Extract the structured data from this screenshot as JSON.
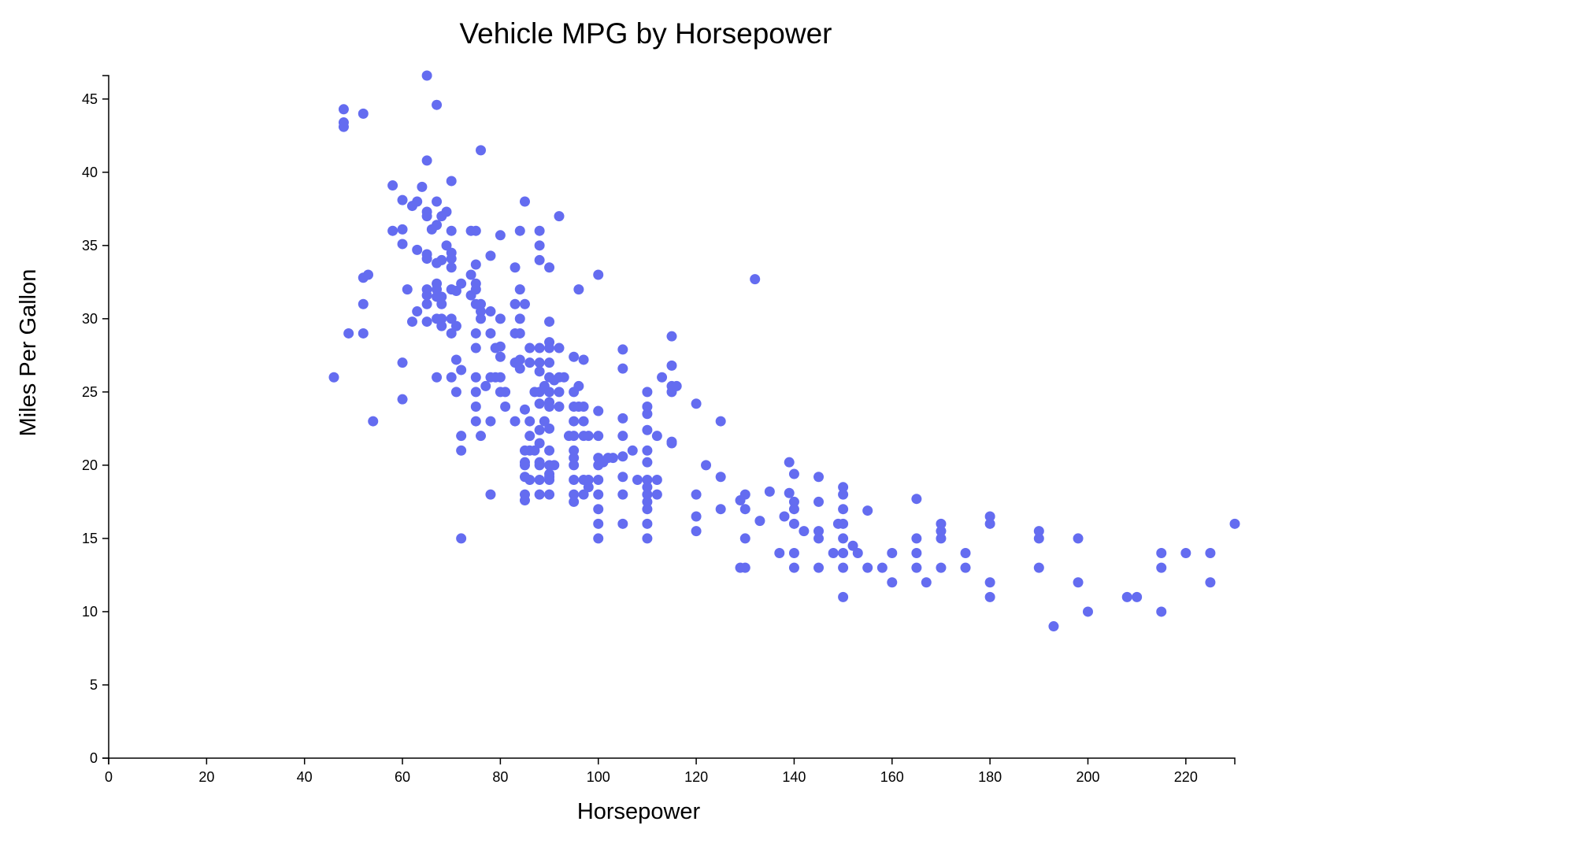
{
  "chart_data": {
    "type": "scatter",
    "title": "Vehicle MPG by Horsepower",
    "xlabel": "Horsepower",
    "ylabel": "Miles Per Gallon",
    "xlim": [
      0,
      230
    ],
    "ylim": [
      0,
      46.6
    ],
    "xticks": [
      0,
      20,
      40,
      60,
      80,
      100,
      120,
      140,
      160,
      180,
      200,
      220
    ],
    "yticks": [
      0,
      5,
      10,
      15,
      20,
      25,
      30,
      35,
      40,
      45
    ],
    "grid": false,
    "point_color": "#646cf0",
    "points": [
      [
        46,
        26
      ],
      [
        48,
        44.3
      ],
      [
        48,
        43.4
      ],
      [
        48,
        43.1
      ],
      [
        49,
        29
      ],
      [
        52,
        44
      ],
      [
        52,
        32.8
      ],
      [
        52,
        31
      ],
      [
        52,
        29
      ],
      [
        53,
        33
      ],
      [
        54,
        23
      ],
      [
        58,
        39.1
      ],
      [
        58,
        36
      ],
      [
        60,
        38.1
      ],
      [
        60,
        36.1
      ],
      [
        60,
        35.1
      ],
      [
        60,
        27
      ],
      [
        60,
        24.5
      ],
      [
        61,
        32
      ],
      [
        62,
        37.7
      ],
      [
        62,
        29.8
      ],
      [
        63,
        38
      ],
      [
        63,
        34.7
      ],
      [
        63,
        30.5
      ],
      [
        64,
        39
      ],
      [
        65,
        46.6
      ],
      [
        65,
        40.8
      ],
      [
        65,
        37.3
      ],
      [
        65,
        37
      ],
      [
        65,
        34.4
      ],
      [
        65,
        34.1
      ],
      [
        65,
        32
      ],
      [
        65,
        31.6
      ],
      [
        65,
        31
      ],
      [
        65,
        29.8
      ],
      [
        66,
        36.1
      ],
      [
        67,
        44.6
      ],
      [
        67,
        38
      ],
      [
        67,
        36.4
      ],
      [
        67,
        33.8
      ],
      [
        67,
        32.4
      ],
      [
        67,
        32
      ],
      [
        67,
        31.5
      ],
      [
        67,
        30
      ],
      [
        67,
        26
      ],
      [
        68,
        37
      ],
      [
        68,
        34
      ],
      [
        68,
        31.5
      ],
      [
        68,
        31
      ],
      [
        68,
        30
      ],
      [
        68,
        29.5
      ],
      [
        69,
        37.3
      ],
      [
        69,
        35
      ],
      [
        70,
        39.4
      ],
      [
        70,
        36
      ],
      [
        70,
        34.5
      ],
      [
        70,
        34.1
      ],
      [
        70,
        33.5
      ],
      [
        70,
        32
      ],
      [
        70,
        30
      ],
      [
        70,
        29
      ],
      [
        70,
        26
      ],
      [
        71,
        31.9
      ],
      [
        71,
        29.5
      ],
      [
        71,
        27.2
      ],
      [
        71,
        25
      ],
      [
        72,
        32.4
      ],
      [
        72,
        26.5
      ],
      [
        72,
        22
      ],
      [
        72,
        21
      ],
      [
        72,
        15
      ],
      [
        74,
        36
      ],
      [
        74,
        33
      ],
      [
        74,
        31.6
      ],
      [
        75,
        36
      ],
      [
        75,
        33.7
      ],
      [
        75,
        32.4
      ],
      [
        75,
        32
      ],
      [
        75,
        31
      ],
      [
        75,
        29
      ],
      [
        75,
        28
      ],
      [
        75,
        26
      ],
      [
        75,
        25
      ],
      [
        75,
        24
      ],
      [
        75,
        23
      ],
      [
        76,
        41.5
      ],
      [
        76,
        31
      ],
      [
        76,
        30.5
      ],
      [
        76,
        30
      ],
      [
        76,
        22
      ],
      [
        77,
        25.4
      ],
      [
        78,
        34.3
      ],
      [
        78,
        30.5
      ],
      [
        78,
        29
      ],
      [
        78,
        26
      ],
      [
        78,
        23
      ],
      [
        78,
        18
      ],
      [
        79,
        28
      ],
      [
        79,
        26
      ],
      [
        80,
        35.7
      ],
      [
        80,
        30
      ],
      [
        80,
        28.1
      ],
      [
        80,
        27.4
      ],
      [
        80,
        26
      ],
      [
        80,
        25
      ],
      [
        81,
        25
      ],
      [
        81,
        24
      ],
      [
        83,
        33.5
      ],
      [
        83,
        31
      ],
      [
        83,
        29
      ],
      [
        83,
        27
      ],
      [
        83,
        23
      ],
      [
        84,
        36
      ],
      [
        84,
        32
      ],
      [
        84,
        30
      ],
      [
        84,
        29
      ],
      [
        84,
        27.2
      ],
      [
        84,
        26.6
      ],
      [
        85,
        38
      ],
      [
        85,
        31
      ],
      [
        85,
        23.8
      ],
      [
        85,
        21
      ],
      [
        85,
        20.2
      ],
      [
        85,
        20
      ],
      [
        85,
        19.2
      ],
      [
        85,
        18
      ],
      [
        85,
        17.6
      ],
      [
        86,
        28
      ],
      [
        86,
        27
      ],
      [
        86,
        23
      ],
      [
        86,
        22
      ],
      [
        86,
        21
      ],
      [
        86,
        19
      ],
      [
        87,
        25
      ],
      [
        87,
        21
      ],
      [
        88,
        36
      ],
      [
        88,
        35
      ],
      [
        88,
        34
      ],
      [
        88,
        28
      ],
      [
        88,
        27
      ],
      [
        88,
        26.4
      ],
      [
        88,
        25
      ],
      [
        88,
        24.2
      ],
      [
        88,
        22.4
      ],
      [
        88,
        21.5
      ],
      [
        88,
        20.2
      ],
      [
        88,
        20
      ],
      [
        88,
        19
      ],
      [
        88,
        18
      ],
      [
        89,
        25.4
      ],
      [
        89,
        23
      ],
      [
        90,
        33.5
      ],
      [
        90,
        29.8
      ],
      [
        90,
        28.4
      ],
      [
        90,
        28
      ],
      [
        90,
        27
      ],
      [
        90,
        26
      ],
      [
        90,
        25
      ],
      [
        90,
        24.3
      ],
      [
        90,
        24
      ],
      [
        90,
        22.5
      ],
      [
        90,
        21
      ],
      [
        90,
        20
      ],
      [
        90,
        19.4
      ],
      [
        90,
        19.2
      ],
      [
        90,
        19
      ],
      [
        90,
        18
      ],
      [
        91,
        25.8
      ],
      [
        91,
        20
      ],
      [
        92,
        37
      ],
      [
        92,
        28
      ],
      [
        92,
        26
      ],
      [
        92,
        25
      ],
      [
        92,
        24
      ],
      [
        93,
        26
      ],
      [
        94,
        22
      ],
      [
        95,
        27.4
      ],
      [
        95,
        25
      ],
      [
        95,
        24
      ],
      [
        95,
        23
      ],
      [
        95,
        22
      ],
      [
        95,
        21
      ],
      [
        95,
        20.5
      ],
      [
        95,
        20
      ],
      [
        95,
        19
      ],
      [
        95,
        18
      ],
      [
        95,
        17.5
      ],
      [
        96,
        32
      ],
      [
        96,
        25.4
      ],
      [
        96,
        24
      ],
      [
        97,
        27.2
      ],
      [
        97,
        24
      ],
      [
        97,
        23
      ],
      [
        97,
        22
      ],
      [
        97,
        19
      ],
      [
        97,
        18
      ],
      [
        98,
        22
      ],
      [
        98,
        18.5
      ],
      [
        98,
        19
      ],
      [
        100,
        33
      ],
      [
        100,
        23.7
      ],
      [
        100,
        22
      ],
      [
        100,
        20.5
      ],
      [
        100,
        20
      ],
      [
        100,
        19
      ],
      [
        100,
        18
      ],
      [
        100,
        17
      ],
      [
        100,
        16
      ],
      [
        100,
        15
      ],
      [
        101,
        20.2
      ],
      [
        102,
        20.5
      ],
      [
        103,
        20.5
      ],
      [
        105,
        27.9
      ],
      [
        105,
        26.6
      ],
      [
        105,
        23.2
      ],
      [
        105,
        22
      ],
      [
        105,
        20.6
      ],
      [
        105,
        19.2
      ],
      [
        105,
        18
      ],
      [
        105,
        16
      ],
      [
        107,
        21
      ],
      [
        108,
        19
      ],
      [
        110,
        25
      ],
      [
        110,
        24
      ],
      [
        110,
        23.5
      ],
      [
        110,
        22.4
      ],
      [
        110,
        21
      ],
      [
        110,
        20.2
      ],
      [
        110,
        19
      ],
      [
        110,
        18.5
      ],
      [
        110,
        18
      ],
      [
        110,
        17.5
      ],
      [
        110,
        17
      ],
      [
        110,
        16
      ],
      [
        110,
        15
      ],
      [
        112,
        22
      ],
      [
        112,
        19
      ],
      [
        112,
        18
      ],
      [
        113,
        26
      ],
      [
        115,
        28.8
      ],
      [
        115,
        26.8
      ],
      [
        115,
        25.4
      ],
      [
        115,
        25
      ],
      [
        115,
        21.5
      ],
      [
        115,
        21.6
      ],
      [
        116,
        25.4
      ],
      [
        120,
        24.2
      ],
      [
        120,
        18
      ],
      [
        120,
        16.5
      ],
      [
        120,
        15.5
      ],
      [
        122,
        20
      ],
      [
        125,
        23
      ],
      [
        125,
        19.2
      ],
      [
        125,
        17
      ],
      [
        129,
        17.6
      ],
      [
        129,
        13
      ],
      [
        130,
        18
      ],
      [
        130,
        17
      ],
      [
        130,
        15
      ],
      [
        130,
        13
      ],
      [
        132,
        32.7
      ],
      [
        133,
        16.2
      ],
      [
        135,
        18.2
      ],
      [
        137,
        14
      ],
      [
        138,
        16.5
      ],
      [
        139,
        20.2
      ],
      [
        139,
        18.1
      ],
      [
        140,
        19.4
      ],
      [
        140,
        17.5
      ],
      [
        140,
        17
      ],
      [
        140,
        16
      ],
      [
        140,
        14
      ],
      [
        140,
        13
      ],
      [
        142,
        15.5
      ],
      [
        145,
        19.2
      ],
      [
        145,
        17.5
      ],
      [
        145,
        15.5
      ],
      [
        145,
        15
      ],
      [
        145,
        13
      ],
      [
        148,
        14
      ],
      [
        149,
        16
      ],
      [
        150,
        18.5
      ],
      [
        150,
        18
      ],
      [
        150,
        17
      ],
      [
        150,
        16
      ],
      [
        150,
        15
      ],
      [
        150,
        14
      ],
      [
        150,
        13
      ],
      [
        150,
        11
      ],
      [
        152,
        14.5
      ],
      [
        153,
        14
      ],
      [
        155,
        16.9
      ],
      [
        155,
        13
      ],
      [
        158,
        13
      ],
      [
        160,
        14
      ],
      [
        160,
        12
      ],
      [
        165,
        17.7
      ],
      [
        165,
        15
      ],
      [
        165,
        14
      ],
      [
        165,
        13
      ],
      [
        167,
        12
      ],
      [
        170,
        16
      ],
      [
        170,
        15.5
      ],
      [
        170,
        15
      ],
      [
        170,
        13
      ],
      [
        175,
        14
      ],
      [
        175,
        13
      ],
      [
        180,
        16.5
      ],
      [
        180,
        16
      ],
      [
        180,
        12
      ],
      [
        180,
        11
      ],
      [
        190,
        15.5
      ],
      [
        190,
        15
      ],
      [
        190,
        13
      ],
      [
        193,
        9
      ],
      [
        198,
        15
      ],
      [
        198,
        12
      ],
      [
        200,
        10
      ],
      [
        208,
        11
      ],
      [
        210,
        11
      ],
      [
        215,
        14
      ],
      [
        215,
        13
      ],
      [
        215,
        10
      ],
      [
        220,
        14
      ],
      [
        225,
        14
      ],
      [
        225,
        12
      ],
      [
        230,
        16
      ]
    ]
  }
}
